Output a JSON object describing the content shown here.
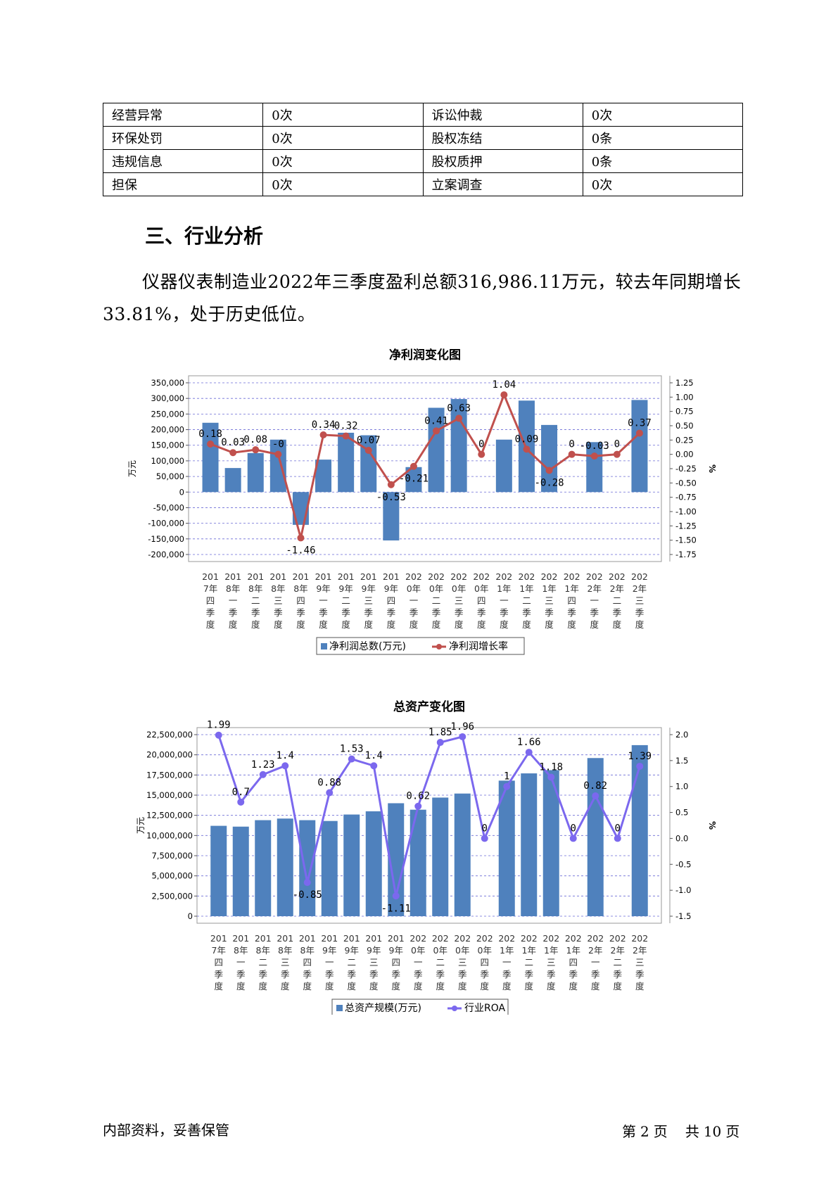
{
  "risk_table": [
    [
      "经营异常",
      "0次",
      "诉讼仲裁",
      "0次"
    ],
    [
      "环保处罚",
      "0次",
      "股权冻结",
      "0条"
    ],
    [
      "违规信息",
      "0次",
      "股权质押",
      "0条"
    ],
    [
      "担保",
      "0次",
      "立案调查",
      "0次"
    ]
  ],
  "section": {
    "title": "三、行业分析",
    "paragraph": "仪器仪表制造业2022年三季度盈利总额316,986.11万元，较去年同期增长33.81%，处于历史低位。"
  },
  "colors": {
    "bar": "#4f81bd",
    "line1": "#c0504d",
    "line2": "#7b68ee",
    "grid": "#6b6bd6"
  },
  "categories": [
    "2017年四季度",
    "2018年一季度",
    "2018年二季度",
    "2018年三季度",
    "2018年四季度",
    "2019年一季度",
    "2019年二季度",
    "2019年三季度",
    "2019年四季度",
    "2020年一季度",
    "2020年二季度",
    "2020年三季度",
    "2020年四季度",
    "2021年一季度",
    "2021年二季度",
    "2021年三季度",
    "2021年四季度",
    "2022年一季度",
    "2022年二季度",
    "2022年三季度"
  ],
  "chart_data": [
    {
      "type": "bar+line",
      "title": "净利润变化图",
      "ylabel": "万元",
      "y2label": "%",
      "ylim": [
        -200000,
        350000
      ],
      "yticks": [
        350000,
        300000,
        250000,
        200000,
        150000,
        100000,
        50000,
        0,
        -50000,
        -100000,
        -150000,
        -200000
      ],
      "ytick_labels": [
        "350,000",
        "300,000",
        "250,000",
        "200,000",
        "150,000",
        "100,000",
        "50,000",
        "0",
        "-50,000",
        "-100,000",
        "-150,000",
        "-200,000"
      ],
      "y2lim": [
        -1.75,
        1.25
      ],
      "y2ticks": [
        1.25,
        1.0,
        0.75,
        0.5,
        0.25,
        0.0,
        -0.25,
        -0.5,
        -0.75,
        -1.0,
        -1.25,
        -1.5,
        -1.75
      ],
      "y2tick_labels": [
        "1.25",
        "1.00",
        "0.75",
        "0.50",
        "0.25",
        "0.00",
        "-0.25",
        "-0.50",
        "-0.75",
        "-1.00",
        "-1.25",
        "-1.50",
        "-1.75"
      ],
      "bar_series": {
        "name": "净利润总数(万元)",
        "values": [
          222000,
          77000,
          125000,
          168000,
          -105000,
          104000,
          190000,
          182000,
          -155000,
          80000,
          270000,
          298000,
          0,
          168000,
          293000,
          215000,
          0,
          160000,
          0,
          295000
        ]
      },
      "line_series": {
        "name": "净利润增长率",
        "values": [
          0.18,
          0.03,
          0.08,
          -0.0,
          -1.46,
          0.34,
          0.32,
          0.07,
          -0.53,
          -0.21,
          0.41,
          0.63,
          0.0,
          1.04,
          0.09,
          -0.28,
          0.0,
          -0.03,
          0.0,
          0.37
        ],
        "labels": [
          "0.18",
          "0.03",
          "0.08",
          "-0",
          "-1.46",
          "0.34",
          "0.32",
          "0.07",
          "-0.53",
          "-0.21",
          "0.41",
          "0.63",
          "0",
          "1.04",
          "0.09",
          "-0.28",
          "0",
          "-0.03",
          "0",
          "0.37"
        ]
      }
    },
    {
      "type": "bar+line",
      "title": "总资产变化图",
      "ylabel": "万元",
      "y2label": "%",
      "ylim": [
        0,
        22500000
      ],
      "yticks": [
        22500000,
        20000000,
        17500000,
        15000000,
        12500000,
        10000000,
        7500000,
        5000000,
        2500000,
        0
      ],
      "ytick_labels": [
        "22,500,000",
        "20,000,000",
        "17,500,000",
        "15,000,000",
        "12,500,000",
        "10,000,000",
        "7,500,000",
        "5,000,000",
        "2,500,000",
        "0"
      ],
      "y2lim": [
        -1.5,
        2.0
      ],
      "y2ticks": [
        2.0,
        1.5,
        1.0,
        0.5,
        0.0,
        -0.5,
        -1.0,
        -1.5
      ],
      "y2tick_labels": [
        "2.0",
        "1.5",
        "1.0",
        "0.5",
        "0.0",
        "-0.5",
        "-1.0",
        "-1.5"
      ],
      "bar_series": {
        "name": "总资产规模(万元)",
        "values": [
          11200000,
          11100000,
          11900000,
          12100000,
          11900000,
          11800000,
          12600000,
          13000000,
          14000000,
          13200000,
          14700000,
          15200000,
          0,
          16800000,
          17700000,
          18100000,
          0,
          19600000,
          0,
          21200000
        ]
      },
      "line_series": {
        "name": "行业ROA",
        "values": [
          1.99,
          0.7,
          1.23,
          1.4,
          -0.85,
          0.88,
          1.53,
          1.4,
          -1.11,
          0.62,
          1.85,
          1.96,
          0,
          1.0,
          1.66,
          1.18,
          0,
          0.82,
          0,
          1.39
        ],
        "labels": [
          "1.99",
          "0.7",
          "1.23",
          "1.4",
          "-0.85",
          "0.88",
          "1.53",
          "1.4",
          "-1.11",
          "0.62",
          "1.85",
          "1.96",
          "0",
          "1",
          "1.66",
          "1.18",
          "0",
          "0.82",
          "0",
          "1.39"
        ]
      }
    }
  ],
  "footer": {
    "left": "内部资料，妥善保管",
    "page_label1": "第",
    "page_num": "2",
    "page_label2": "页",
    "total_label1": "共",
    "total_num": "10",
    "total_label2": "页"
  }
}
